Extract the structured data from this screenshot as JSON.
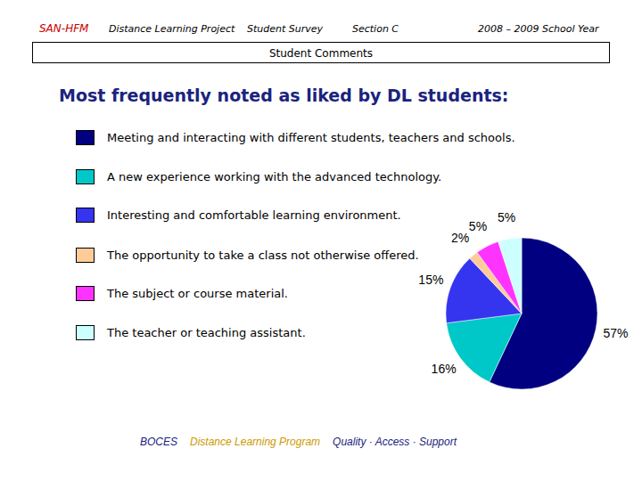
{
  "chart_data": {
    "type": "pie",
    "header": [
      "SAN-HFM",
      "Distance Learning Project",
      "Student Survey",
      "Section C",
      "2008 – 2009 School Year"
    ],
    "subtitle": "Student Comments",
    "title": "Most frequently noted as liked by DL students:",
    "categories": [
      "Meeting and interacting with different students, teachers and schools.",
      "A new experience working with the advanced technology.",
      "Interesting and comfortable learning environment.",
      "The opportunity to take a class not otherwise offered.",
      "The subject or course material.",
      "The teacher or teaching assistant."
    ],
    "values": [
      57,
      16,
      15,
      2,
      5,
      5
    ],
    "value_labels": [
      "57%",
      "16%",
      "15%",
      "2%",
      "5%",
      "5%"
    ],
    "colors": [
      "#000080",
      "#00c8c8",
      "#3535f0",
      "#ffcc99",
      "#ff33ff",
      "#ccffff"
    ],
    "data_labels": true,
    "legend": "left",
    "footer": [
      "BOCES",
      "Distance Learning Program",
      "Quality · Access · Support"
    ]
  }
}
